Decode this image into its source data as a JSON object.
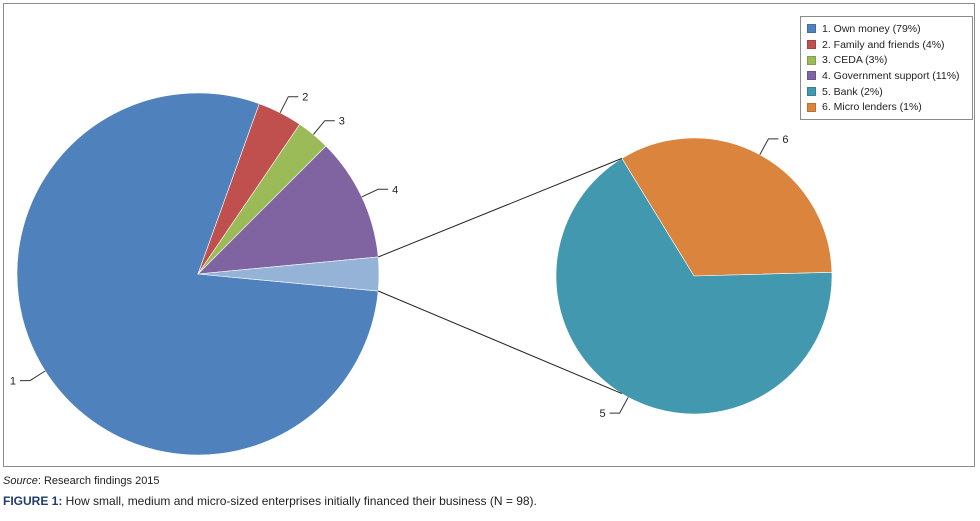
{
  "chart_data": {
    "type": "pie",
    "subtype": "pie-of-pie",
    "categories": [
      "1. Own money (79%)",
      "2. Family and friends (4%)",
      "3. CEDA (3%)",
      "4. Government support (11%)",
      "5. Bank (2%)",
      "6. Micro lenders (1%)"
    ],
    "values": [
      79,
      4,
      3,
      11,
      2,
      1
    ],
    "slice_labels": [
      "1",
      "2",
      "3",
      "4",
      "5",
      "6"
    ],
    "colors": [
      "#4f81bd",
      "#c0504d",
      "#9bbb59",
      "#8064a2",
      "#4198af",
      "#db843d"
    ],
    "other_color": "#95b3d7",
    "secondary_indices": [
      4,
      5
    ],
    "legend_position": "top-right"
  },
  "source": {
    "label": "Source",
    "text": ": Research findings 2015"
  },
  "caption": {
    "label": "FIGURE 1:",
    "text": " How small, medium and micro-sized enterprises initially financed their business (N = 98)."
  }
}
